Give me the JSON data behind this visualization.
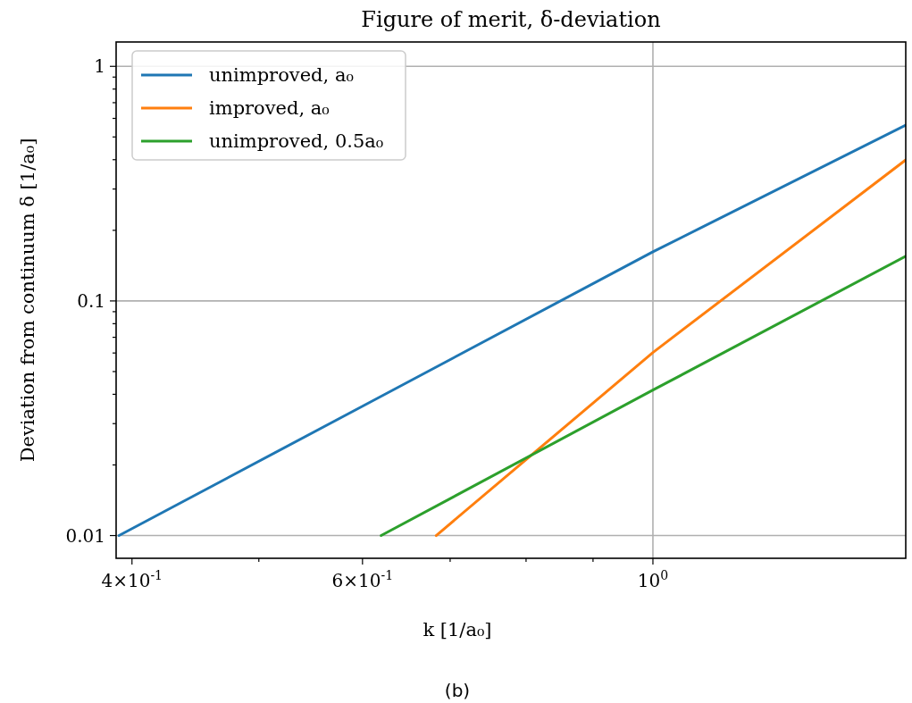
{
  "chart_data": {
    "type": "line",
    "title": "Figure of merit, δ-deviation",
    "xlabel": "k [1/a₀]",
    "ylabel": "Deviation from continuum δ [1/a₀]",
    "annotations": [
      "(b)"
    ],
    "log": "xy",
    "grid": true,
    "legend": "top left",
    "marker": "none",
    "line_style": "solid",
    "xlim": [
      0.389,
      1.56
    ],
    "ylim": [
      0.008,
      1.27
    ],
    "xticks": [
      {
        "value": 0.4,
        "label": "4×10$^{-1}$"
      },
      {
        "value": 0.5,
        "label": null
      },
      {
        "value": 0.6,
        "label": "6×10$^{-1}$"
      },
      {
        "value": 0.7,
        "label": null
      },
      {
        "value": 0.8,
        "label": null
      },
      {
        "value": 0.9,
        "label": null
      },
      {
        "value": 1,
        "label": "10$^{0}$"
      }
    ],
    "yticks": [
      {
        "value": 0.01,
        "label": "0.01"
      },
      {
        "value": 0.02,
        "label": null
      },
      {
        "value": 0.03,
        "label": null
      },
      {
        "value": 0.04,
        "label": null
      },
      {
        "value": 0.05,
        "label": null
      },
      {
        "value": 0.06,
        "label": null
      },
      {
        "value": 0.07,
        "label": null
      },
      {
        "value": 0.08,
        "label": null
      },
      {
        "value": 0.09,
        "label": null
      },
      {
        "value": 0.1,
        "label": "0.1"
      },
      {
        "value": 0.2,
        "label": null
      },
      {
        "value": 0.3,
        "label": null
      },
      {
        "value": 0.4,
        "label": null
      },
      {
        "value": 0.5,
        "label": null
      },
      {
        "value": 0.6,
        "label": null
      },
      {
        "value": 0.7,
        "label": null
      },
      {
        "value": 0.8,
        "label": null
      },
      {
        "value": 0.9,
        "label": null
      },
      {
        "value": 1,
        "label": "1"
      }
    ],
    "series": [
      {
        "name": "unimproved, a₀",
        "color": "#1f77b4",
        "x": [
          0.391,
          0.6,
          1,
          1.56
        ],
        "values": [
          0.01,
          0.0356,
          0.162,
          0.561
        ]
      },
      {
        "name": "improved, a₀",
        "color": "#ff7f0e",
        "x": [
          0.683,
          1,
          1.56
        ],
        "values": [
          0.01,
          0.0603,
          0.399
        ]
      },
      {
        "name": "unimproved, 0.5a₀",
        "color": "#2ca02c",
        "x": [
          0.62,
          1,
          1.56
        ],
        "values": [
          0.01,
          0.0417,
          0.155
        ]
      }
    ]
  }
}
